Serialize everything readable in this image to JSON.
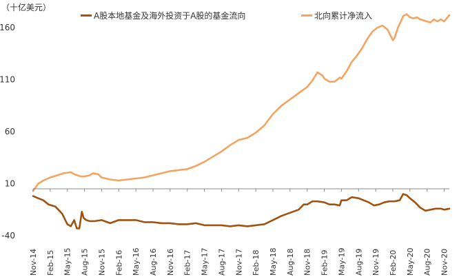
{
  "chart_data": {
    "type": "line",
    "unit_label": "（十亿美元）",
    "x_tick_labels": [
      "Nov-14",
      "Feb-15",
      "May-15",
      "Aug-15",
      "Nov-15",
      "Feb-16",
      "May-16",
      "Aug-16",
      "Nov-16",
      "Feb-17",
      "May-17",
      "Aug-17",
      "Nov-17",
      "Feb-18",
      "May-18",
      "Aug-18",
      "Nov-18",
      "Feb-19",
      "May-19",
      "Aug-19",
      "Nov-19",
      "Feb-20",
      "May-20",
      "Aug-20",
      "Nov-20"
    ],
    "y_ticks": [
      -40,
      10,
      60,
      110,
      160
    ],
    "ylim": [
      -40,
      176
    ],
    "xlim": [
      0,
      24.3
    ],
    "series": [
      {
        "name": "A股本地基金及海外投资于A股的基金流向",
        "color": "#A0520F",
        "x": [
          0,
          0.3,
          0.6,
          0.9,
          1.1,
          1.3,
          1.7,
          2.0,
          2.2,
          2.4,
          2.55,
          2.7,
          2.85,
          2.95,
          3.1,
          3.3,
          3.6,
          4.0,
          4.5,
          5.0,
          5.5,
          6.0,
          6.5,
          7.0,
          7.5,
          8.0,
          8.5,
          9.0,
          9.5,
          10.0,
          10.5,
          11.0,
          11.5,
          12.0,
          12.5,
          13.0,
          13.5,
          14.0,
          14.5,
          15.0,
          15.5,
          15.8,
          16.0,
          16.3,
          16.6,
          17.0,
          17.3,
          17.6,
          17.9,
          18.0,
          18.3,
          18.6,
          19.0,
          19.3,
          19.6,
          19.9,
          20.2,
          20.5,
          20.8,
          21.1,
          21.4,
          21.6,
          21.8,
          22.0,
          22.3,
          22.6,
          22.9,
          23.2,
          23.5,
          23.8,
          24.0,
          24.3
        ],
        "y": [
          -2,
          -4,
          -6,
          -10,
          -11,
          -12,
          -19,
          -29,
          -31,
          -25,
          -33,
          -33,
          -17,
          -23,
          -25,
          -26,
          -26,
          -25,
          -28,
          -25,
          -25,
          -25,
          -27,
          -27,
          -28,
          -28,
          -29,
          -29,
          -28,
          -30,
          -30,
          -30,
          -31,
          -30,
          -31,
          -30,
          -29,
          -25,
          -21,
          -18,
          -15,
          -10,
          -10,
          -7,
          -7,
          -8,
          -10,
          -10,
          -11,
          -6,
          -6,
          -3,
          -4,
          -6,
          -8,
          -11,
          -10,
          -8,
          -7,
          -7,
          -6,
          0,
          -1,
          -4,
          -8,
          -13,
          -16,
          -15,
          -14,
          -14,
          -15,
          -14
        ]
      },
      {
        "name": "北向累计净流入",
        "color": "#F4A460",
        "x": [
          0,
          0.3,
          0.6,
          1.0,
          1.4,
          1.8,
          2.2,
          2.4,
          2.6,
          2.8,
          3.0,
          3.3,
          3.5,
          3.8,
          4.0,
          4.5,
          5.0,
          5.5,
          6.0,
          6.5,
          7.0,
          7.5,
          8.0,
          8.5,
          9.0,
          9.5,
          10.0,
          10.5,
          11.0,
          11.5,
          12.0,
          12.5,
          13.0,
          13.5,
          14.0,
          14.5,
          15.0,
          15.5,
          16.0,
          16.3,
          16.6,
          16.9,
          17.0,
          17.3,
          17.6,
          17.9,
          18.0,
          18.3,
          18.6,
          18.9,
          19.2,
          19.5,
          19.8,
          20.1,
          20.4,
          20.7,
          21.0,
          21.1,
          21.3,
          21.5,
          21.6,
          21.8,
          22.0,
          22.2,
          22.4,
          22.6,
          22.8,
          23.0,
          23.2,
          23.4,
          23.6,
          23.8,
          24.0,
          24.3
        ],
        "y": [
          3,
          10,
          13,
          16,
          18,
          20,
          21,
          19,
          18,
          17,
          17,
          18,
          20,
          19,
          16,
          14,
          13,
          14,
          15,
          16,
          18,
          20,
          22,
          23,
          24,
          27,
          31,
          36,
          41,
          47,
          52,
          54,
          59,
          66,
          77,
          85,
          91,
          97,
          103,
          109,
          117,
          114,
          111,
          108,
          108,
          112,
          111,
          118,
          127,
          133,
          140,
          149,
          156,
          160,
          162,
          158,
          148,
          150,
          160,
          167,
          171,
          173,
          170,
          169,
          170,
          168,
          167,
          166,
          165,
          168,
          166,
          168,
          166,
          172
        ]
      }
    ]
  }
}
